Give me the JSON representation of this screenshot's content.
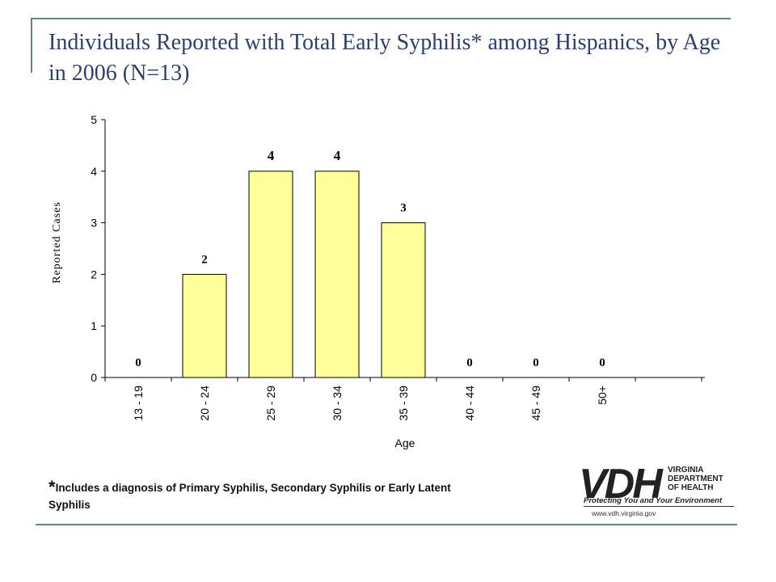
{
  "slide": {
    "title": "Individuals Reported with Total Early Syphilis* among Hispanics, by Age in 2006 (N=13)",
    "footnote_star": "*",
    "footnote_text": "Includes a diagnosis of Primary Syphilis, Secondary Syphilis or Early Latent Syphilis"
  },
  "logo": {
    "mark": "VDH",
    "dept_lines": [
      "VIRGINIA",
      "DEPARTMENT",
      "OF HEALTH"
    ],
    "tagline": "Protecting You and Your Environment",
    "url": "www.vdh.virginia.gov"
  },
  "colors": {
    "bar_fill": "#ffff99",
    "bar_stroke": "#000000",
    "title": "#2f3e72",
    "frame": "#5b8c7a"
  },
  "chart_data": {
    "type": "bar",
    "title": "",
    "xlabel": "Age",
    "ylabel": "Reported Cases",
    "categories": [
      "13 - 19",
      "20 - 24",
      "25 - 29",
      "30 - 34",
      "35 - 39",
      "40 - 44",
      "45 - 49",
      "50+"
    ],
    "values": [
      0,
      2,
      4,
      4,
      3,
      0,
      0,
      0
    ],
    "data_labels": [
      "0",
      "2",
      "4",
      "4",
      "3",
      "0",
      "0",
      "0"
    ],
    "ylim": [
      0,
      5
    ],
    "yticks": [
      0,
      1,
      2,
      3,
      4,
      5
    ],
    "grid": false,
    "legend": "none"
  }
}
